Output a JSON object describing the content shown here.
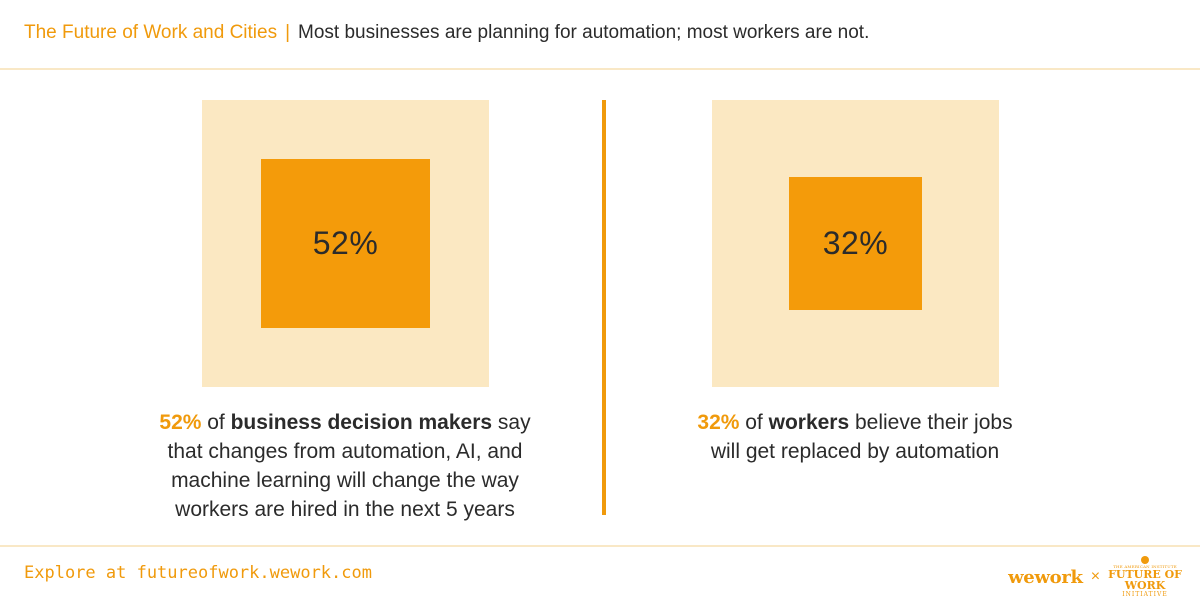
{
  "header": {
    "series_title": "The Future of Work and Cities",
    "separator": "|",
    "headline": "Most businesses are planning for automation; most workers are not."
  },
  "chart_data": [
    {
      "type": "square-proportion",
      "value": 52,
      "unit": "%",
      "label": "52%",
      "caption": {
        "pct": "52%",
        "pre": " of ",
        "subject": "business decision makers",
        "post": " say that changes from automation, AI, and machine learning will change the way workers are hired in the next 5 years"
      }
    },
    {
      "type": "square-proportion",
      "value": 32,
      "unit": "%",
      "label": "32%",
      "caption": {
        "pct": "32%",
        "pre": " of ",
        "subject": "workers",
        "post": " believe their jobs will get replaced by automation"
      }
    }
  ],
  "colors": {
    "accent": "#f49b0a",
    "pale": "#fbe8c2",
    "text": "#2b2b2b"
  },
  "footer": {
    "link": "Explore at futureofwork.wework.com",
    "logo_wework": "wework",
    "logo_times": "×",
    "logo_fow_small": "THE AMERICAN INSTITUTE",
    "logo_fow_line1": "FUTURE OF",
    "logo_fow_line2": "WORK",
    "logo_fow_line3": "INITIATIVE"
  }
}
